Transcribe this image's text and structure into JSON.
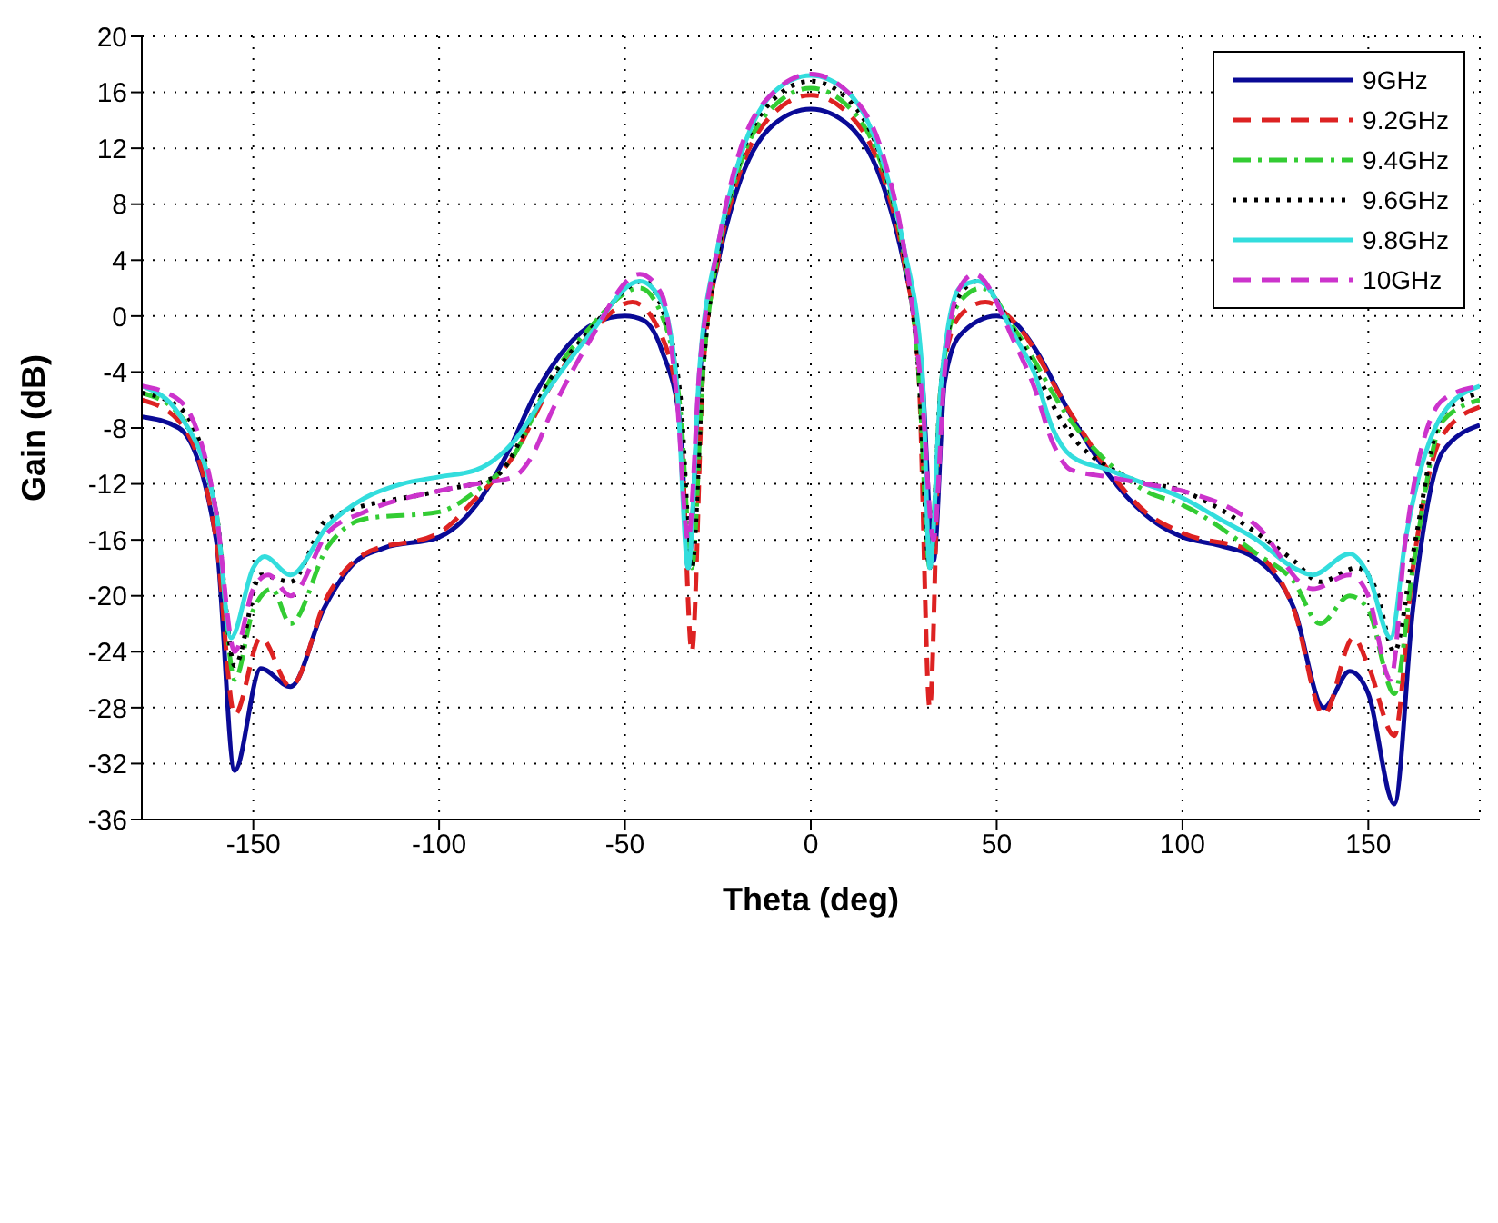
{
  "chart_data": {
    "type": "line",
    "xlabel": "Theta (deg)",
    "ylabel": "Gain (dB)",
    "xlim": [
      -180,
      180
    ],
    "xticks": [
      -150,
      -100,
      -50,
      0,
      50,
      100,
      150
    ],
    "ylim": [
      -36,
      20
    ],
    "yticks": [
      -36,
      -32,
      -28,
      -24,
      -20,
      -16,
      -12,
      -8,
      -4,
      0,
      4,
      8,
      12,
      16,
      20
    ],
    "grid": true,
    "legend": "top right",
    "marker": "none",
    "series": [
      {
        "name": "9GHz",
        "color": "#0a0a96",
        "line_style": "solid",
        "x": [
          -180,
          -170,
          -160,
          -155,
          -148,
          -140,
          -131,
          -123,
          -115,
          -100,
          -90,
          -82,
          -74,
          -66,
          -58,
          -50,
          -45,
          -40,
          -35,
          -33,
          -30,
          -25,
          -20,
          -10,
          0,
          10,
          20,
          25,
          30,
          33,
          36,
          40,
          50,
          55,
          60,
          70,
          80,
          90,
          100,
          110,
          120,
          130,
          138,
          145,
          150,
          157,
          162,
          170,
          180
        ],
        "values": [
          -7.2,
          -8,
          -16,
          -32.5,
          -25.2,
          -26.5,
          -20.9,
          -17.7,
          -16.6,
          -15.8,
          -13.5,
          -10,
          -5.5,
          -2.3,
          -0.5,
          0,
          -0.3,
          -2.5,
          -8,
          -18,
          -4.7,
          3.8,
          8.9,
          13.7,
          14.8,
          13.7,
          8.9,
          3.8,
          -4.5,
          -17.5,
          -4.7,
          -1.4,
          0,
          -0.5,
          -2.2,
          -7.1,
          -11.3,
          -14.2,
          -15.8,
          -16.4,
          -17.4,
          -20.9,
          -28,
          -25.4,
          -27,
          -34.9,
          -20.9,
          -9.7,
          -7.8
        ]
      },
      {
        "name": "9.2GHz",
        "color": "#dd2222",
        "line_style": "dashed",
        "x": [
          -180,
          -170,
          -160,
          -155,
          -148,
          -140,
          -130,
          -120,
          -100,
          -90,
          -80,
          -70,
          -60,
          -48,
          -40,
          -35,
          -32,
          -29,
          -25,
          -20,
          -10,
          0,
          10,
          20,
          25,
          29,
          32,
          35,
          40,
          47,
          55,
          70,
          80,
          90,
          100,
          120,
          130,
          138,
          146,
          150,
          157,
          162,
          170,
          180
        ],
        "values": [
          -6,
          -7.5,
          -16,
          -28.5,
          -23,
          -26.5,
          -20,
          -17,
          -15.5,
          -13,
          -10,
          -5,
          -1.5,
          1,
          -1.5,
          -8,
          -24,
          -4,
          4,
          9.5,
          14.5,
          15.8,
          14.5,
          9.5,
          4,
          -4,
          -28,
          -5,
          0,
          1,
          -0.5,
          -7,
          -11,
          -14,
          -15.5,
          -17,
          -21,
          -28.5,
          -23,
          -25,
          -30,
          -18,
          -8.5,
          -6.5
        ]
      },
      {
        "name": "9.4GHz",
        "color": "#33cc33",
        "line_style": "dashdot",
        "x": [
          -180,
          -170,
          -160,
          -155,
          -150,
          -145,
          -140,
          -130,
          -120,
          -100,
          -90,
          -80,
          -70,
          -60,
          -46,
          -40,
          -35,
          -32,
          -29,
          -25,
          -20,
          -10,
          0,
          10,
          20,
          25,
          29,
          32,
          35,
          40,
          46,
          55,
          70,
          80,
          90,
          100,
          120,
          130,
          137,
          145,
          150,
          157,
          162,
          170,
          180
        ],
        "values": [
          -5.5,
          -7,
          -14,
          -26,
          -21,
          -19.5,
          -22,
          -16.5,
          -14.5,
          -14,
          -12.5,
          -10,
          -4.5,
          -1,
          2,
          0,
          -7,
          -18,
          -4,
          4.5,
          10,
          15,
          16.3,
          15,
          10,
          4.5,
          -4,
          -18,
          -5,
          1,
          2,
          -1,
          -7.5,
          -10.5,
          -12.5,
          -13.5,
          -17,
          -19,
          -22,
          -20,
          -21,
          -27,
          -18,
          -7.5,
          -6
        ]
      },
      {
        "name": "9.6GHz",
        "color": "#000000",
        "line_style": "dotted",
        "x": [
          -180,
          -170,
          -160,
          -155,
          -148,
          -140,
          -130,
          -100,
          -85,
          -70,
          -60,
          -45,
          -40,
          -35,
          -32,
          -29,
          -25,
          -20,
          -10,
          0,
          10,
          20,
          25,
          29,
          32,
          35,
          40,
          45,
          55,
          70,
          85,
          100,
          130,
          137,
          147,
          152,
          157,
          162,
          170,
          180
        ],
        "values": [
          -5.5,
          -6.5,
          -14,
          -25,
          -18.5,
          -19,
          -14.5,
          -12.5,
          -11.5,
          -4.5,
          -1.2,
          2.5,
          0.5,
          -6,
          -18,
          -4,
          4.5,
          10.3,
          15.5,
          16.8,
          15.5,
          10.3,
          4.5,
          -4,
          -18,
          -5,
          1.5,
          2.5,
          -1.2,
          -8.5,
          -11.5,
          -12.5,
          -17.5,
          -19,
          -18,
          -19.5,
          -24,
          -17,
          -7,
          -5.5
        ]
      },
      {
        "name": "9.8GHz",
        "color": "#33dddd",
        "line_style": "solid",
        "x": [
          -180,
          -170,
          -160,
          -156,
          -150,
          -147,
          -140,
          -130,
          -120,
          -110,
          -100,
          -90,
          -80,
          -70,
          -60,
          -46,
          -40,
          -36,
          -33,
          -30,
          -25,
          -20,
          -10,
          0,
          10,
          20,
          25,
          30,
          32,
          35,
          40,
          45,
          55,
          60,
          65,
          70,
          80,
          90,
          100,
          110,
          120,
          130,
          135,
          145,
          150,
          156,
          160,
          170,
          180
        ],
        "values": [
          -5,
          -7,
          -14,
          -23,
          -18,
          -17.2,
          -18.5,
          -15,
          -13,
          -12,
          -11.5,
          -11,
          -9,
          -5,
          -1.5,
          2.5,
          1,
          -5,
          -18,
          -4,
          5,
          10.5,
          16,
          17.2,
          16,
          10.5,
          5,
          -4,
          -18,
          -5,
          2,
          2.5,
          -1.5,
          -4,
          -8,
          -10,
          -11,
          -12,
          -13,
          -14.5,
          -16,
          -18,
          -18.5,
          -17,
          -18.5,
          -23,
          -16,
          -7,
          -5
        ]
      },
      {
        "name": "10GHz",
        "color": "#cc33cc",
        "line_style": "dashed",
        "x": [
          -180,
          -170,
          -160,
          -155,
          -150,
          -146,
          -140,
          -130,
          -120,
          -100,
          -90,
          -80,
          -75,
          -70,
          -60,
          -46,
          -40,
          -36,
          -33,
          -30,
          -25,
          -20,
          -10,
          0,
          10,
          20,
          25,
          30,
          33,
          36,
          40,
          44,
          55,
          60,
          65,
          70,
          80,
          90,
          100,
          120,
          135,
          145,
          150,
          156,
          160,
          170,
          180
        ],
        "values": [
          -5,
          -6,
          -14,
          -24,
          -19.5,
          -18.5,
          -20,
          -15.5,
          -14,
          -12.5,
          -12,
          -11.5,
          -10,
          -7,
          -2,
          3,
          1.5,
          -6,
          -16,
          -4,
          5,
          11,
          16,
          17.3,
          16,
          11,
          5,
          -6,
          -16,
          -4,
          2,
          3,
          -2,
          -5,
          -9,
          -11,
          -11.5,
          -12,
          -12.5,
          -15,
          -19.5,
          -18.5,
          -20,
          -26,
          -16,
          -6,
          -5
        ]
      }
    ]
  }
}
